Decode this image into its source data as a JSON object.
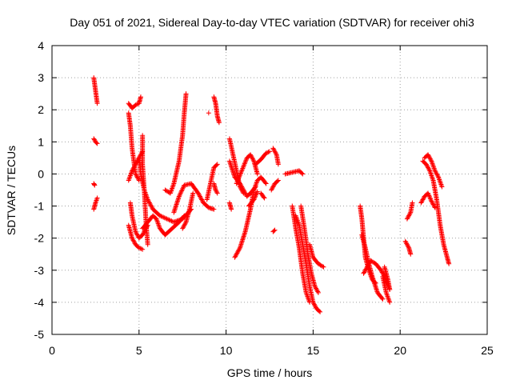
{
  "chart_data": {
    "type": "scatter",
    "title": "Day 051 of 2021, Sidereal Day-to-day VTEC variation (SDTVAR) for receiver ohi3",
    "xlabel": "GPS time / hours",
    "ylabel": "SDTVAR / TECUs",
    "xlim": [
      0,
      25
    ],
    "ylim": [
      -5,
      4
    ],
    "xticks": [
      "0",
      "5",
      "10",
      "15",
      "20",
      "25"
    ],
    "yticks": [
      "-5",
      "-4",
      "-3",
      "-2",
      "-1",
      "0",
      "1",
      "2",
      "3",
      "4"
    ],
    "grid": true,
    "marker": "+",
    "marker_color": "#ff0000",
    "segments": [
      [
        [
          2.4,
          3.0
        ],
        [
          2.5,
          2.6
        ],
        [
          2.6,
          2.2
        ]
      ],
      [
        [
          2.4,
          1.1
        ],
        [
          2.5,
          1.0
        ],
        [
          2.6,
          0.95
        ]
      ],
      [
        [
          2.4,
          -0.3
        ],
        [
          2.45,
          -0.35
        ]
      ],
      [
        [
          2.4,
          -1.1
        ],
        [
          2.5,
          -0.9
        ],
        [
          2.6,
          -0.75
        ]
      ],
      [
        [
          4.4,
          -1.6
        ],
        [
          4.6,
          -2.0
        ],
        [
          4.8,
          -2.2
        ],
        [
          5.0,
          -2.3
        ],
        [
          5.2,
          -2.35
        ]
      ],
      [
        [
          4.4,
          -0.2
        ],
        [
          4.6,
          0.1
        ],
        [
          4.8,
          0.3
        ],
        [
          5.0,
          0.5
        ],
        [
          5.2,
          0.7
        ]
      ],
      [
        [
          4.4,
          2.2
        ],
        [
          4.6,
          2.05
        ],
        [
          4.8,
          2.15
        ],
        [
          5.0,
          2.2
        ],
        [
          5.1,
          2.4
        ]
      ],
      [
        [
          4.4,
          1.9
        ],
        [
          4.5,
          1.5
        ],
        [
          4.6,
          0.8
        ],
        [
          4.8,
          0.0
        ],
        [
          5.0,
          -0.2
        ]
      ],
      [
        [
          4.5,
          -0.9
        ],
        [
          4.6,
          -1.3
        ],
        [
          4.8,
          -1.8
        ],
        [
          5.0,
          -2.0
        ],
        [
          5.2,
          -1.9
        ],
        [
          5.5,
          -1.6
        ]
      ],
      [
        [
          5.0,
          0.5
        ],
        [
          5.1,
          0.0
        ],
        [
          5.3,
          -0.5
        ],
        [
          5.5,
          -0.8
        ],
        [
          5.8,
          -1.1
        ],
        [
          6.2,
          -1.3
        ],
        [
          6.6,
          -1.4
        ],
        [
          7.0,
          -1.5
        ],
        [
          7.5,
          -1.4
        ],
        [
          8.0,
          -1.1
        ]
      ],
      [
        [
          5.2,
          1.2
        ],
        [
          5.2,
          0.3
        ],
        [
          5.3,
          -0.5
        ],
        [
          5.4,
          -1.5
        ],
        [
          5.5,
          -2.2
        ]
      ],
      [
        [
          5.2,
          -1.7
        ],
        [
          5.5,
          -1.5
        ],
        [
          5.8,
          -1.3
        ],
        [
          6.0,
          -1.4
        ],
        [
          6.2,
          -1.7
        ],
        [
          6.5,
          -1.9
        ],
        [
          6.9,
          -1.7
        ],
        [
          7.3,
          -1.5
        ],
        [
          7.6,
          -1.3
        ]
      ],
      [
        [
          6.5,
          -0.5
        ],
        [
          6.8,
          -0.6
        ],
        [
          7.0,
          -0.3
        ],
        [
          7.3,
          0.4
        ],
        [
          7.5,
          1.2
        ],
        [
          7.6,
          1.9
        ],
        [
          7.7,
          2.5
        ]
      ],
      [
        [
          7.0,
          -1.2
        ],
        [
          7.3,
          -0.7
        ],
        [
          7.6,
          -0.35
        ],
        [
          8.0,
          -0.3
        ],
        [
          8.4,
          -0.6
        ],
        [
          8.7,
          -0.9
        ],
        [
          9.0,
          -1.05
        ],
        [
          9.3,
          -1.1
        ]
      ],
      [
        [
          7.5,
          -1.7
        ],
        [
          7.7,
          -1.5
        ],
        [
          7.9,
          -1.1
        ],
        [
          8.1,
          -0.6
        ]
      ],
      [
        [
          8.9,
          -0.8
        ],
        [
          9.1,
          -0.3
        ],
        [
          9.3,
          0.2
        ],
        [
          9.5,
          0.3
        ]
      ],
      [
        [
          9.0,
          1.9
        ]
      ],
      [
        [
          9.3,
          2.4
        ],
        [
          9.4,
          2.2
        ],
        [
          9.5,
          1.8
        ],
        [
          9.6,
          1.6
        ]
      ],
      [
        [
          9.3,
          -0.3
        ],
        [
          9.4,
          -0.5
        ],
        [
          9.5,
          -0.6
        ]
      ],
      [
        [
          10.2,
          1.1
        ],
        [
          10.4,
          0.6
        ],
        [
          10.6,
          0.1
        ],
        [
          10.8,
          -0.4
        ],
        [
          11.0,
          -0.6
        ]
      ],
      [
        [
          10.2,
          -0.9
        ],
        [
          10.3,
          -1.1
        ]
      ],
      [
        [
          10.2,
          0.4
        ],
        [
          10.5,
          -0.1
        ],
        [
          10.8,
          -0.3
        ],
        [
          11.0,
          -0.5
        ],
        [
          11.2,
          -0.7
        ],
        [
          11.4,
          -0.6
        ],
        [
          11.7,
          -0.4
        ]
      ],
      [
        [
          10.5,
          -2.6
        ],
        [
          10.8,
          -2.3
        ],
        [
          11.1,
          -1.8
        ],
        [
          11.4,
          -1.1
        ],
        [
          11.6,
          -0.5
        ],
        [
          11.8,
          -0.2
        ],
        [
          12.0,
          -0.1
        ],
        [
          12.3,
          -0.3
        ]
      ],
      [
        [
          10.6,
          -0.3
        ],
        [
          10.9,
          0.1
        ],
        [
          11.2,
          0.5
        ],
        [
          11.4,
          0.6
        ],
        [
          11.6,
          0.4
        ],
        [
          11.8,
          0.0
        ]
      ],
      [
        [
          11.3,
          -1.0
        ],
        [
          11.6,
          -0.8
        ],
        [
          11.8,
          -0.55
        ]
      ],
      [
        [
          11.7,
          0.3
        ],
        [
          12.0,
          0.45
        ],
        [
          12.3,
          0.65
        ],
        [
          12.5,
          0.7
        ]
      ],
      [
        [
          12.0,
          -0.6
        ],
        [
          12.2,
          -0.75
        ]
      ],
      [
        [
          12.6,
          -0.5
        ],
        [
          12.8,
          -0.3
        ],
        [
          13.0,
          -0.2
        ]
      ],
      [
        [
          12.7,
          0.8
        ],
        [
          12.9,
          0.6
        ],
        [
          13.0,
          0.3
        ]
      ],
      [
        [
          12.7,
          -1.8
        ],
        [
          12.8,
          -1.75
        ]
      ],
      [
        [
          13.4,
          0.0
        ],
        [
          13.8,
          0.05
        ],
        [
          14.2,
          0.1
        ],
        [
          14.4,
          0.0
        ]
      ],
      [
        [
          13.8,
          -1.0
        ],
        [
          14.0,
          -1.7
        ],
        [
          14.2,
          -2.3
        ],
        [
          14.4,
          -3.1
        ],
        [
          14.6,
          -3.7
        ],
        [
          14.8,
          -4.0
        ]
      ],
      [
        [
          14.0,
          -1.3
        ],
        [
          14.2,
          -1.6
        ],
        [
          14.4,
          -2.2
        ],
        [
          14.6,
          -2.8
        ],
        [
          14.8,
          -3.5
        ],
        [
          15.0,
          -4.0
        ],
        [
          15.2,
          -4.2
        ],
        [
          15.4,
          -4.3
        ]
      ],
      [
        [
          14.3,
          -1.0
        ],
        [
          14.5,
          -1.7
        ],
        [
          14.7,
          -2.5
        ],
        [
          14.9,
          -3.1
        ],
        [
          15.1,
          -3.5
        ],
        [
          15.3,
          -3.7
        ]
      ],
      [
        [
          14.8,
          -2.2
        ],
        [
          15.0,
          -2.6
        ],
        [
          15.3,
          -2.8
        ],
        [
          15.6,
          -2.9
        ]
      ],
      [
        [
          17.7,
          -1.0
        ],
        [
          17.8,
          -1.4
        ],
        [
          17.9,
          -2.0
        ],
        [
          18.0,
          -2.6
        ],
        [
          18.2,
          -3.0
        ],
        [
          18.4,
          -3.3
        ],
        [
          18.6,
          -3.4
        ]
      ],
      [
        [
          17.8,
          -1.9
        ],
        [
          18.0,
          -2.3
        ],
        [
          18.2,
          -2.8
        ],
        [
          18.4,
          -3.2
        ],
        [
          18.7,
          -3.7
        ],
        [
          19.0,
          -3.9
        ]
      ],
      [
        [
          17.9,
          -3.1
        ],
        [
          18.1,
          -2.9
        ],
        [
          18.3,
          -2.7
        ],
        [
          18.6,
          -2.8
        ],
        [
          18.9,
          -3.0
        ],
        [
          19.2,
          -3.3
        ],
        [
          19.4,
          -3.6
        ]
      ],
      [
        [
          19.0,
          -3.2
        ],
        [
          19.2,
          -3.7
        ],
        [
          19.4,
          -4.0
        ]
      ],
      [
        [
          19.1,
          -2.9
        ],
        [
          19.3,
          -3.3
        ],
        [
          19.4,
          -3.6
        ]
      ],
      [
        [
          20.3,
          -2.1
        ],
        [
          20.5,
          -2.3
        ],
        [
          20.6,
          -2.5
        ]
      ],
      [
        [
          20.4,
          -1.4
        ],
        [
          20.6,
          -1.2
        ],
        [
          20.7,
          -0.9
        ]
      ],
      [
        [
          21.2,
          -0.9
        ],
        [
          21.4,
          -0.7
        ],
        [
          21.6,
          -0.6
        ],
        [
          21.8,
          -0.85
        ],
        [
          22.0,
          -1.05
        ]
      ],
      [
        [
          21.3,
          0.4
        ],
        [
          21.5,
          0.3
        ],
        [
          21.7,
          0.1
        ],
        [
          21.9,
          -0.2
        ],
        [
          22.1,
          -0.8
        ],
        [
          22.3,
          -1.6
        ],
        [
          22.5,
          -2.2
        ],
        [
          22.7,
          -2.6
        ],
        [
          22.8,
          -2.8
        ]
      ],
      [
        [
          21.4,
          0.5
        ],
        [
          21.6,
          0.6
        ],
        [
          21.8,
          0.4
        ],
        [
          22.0,
          0.1
        ],
        [
          22.2,
          -0.1
        ],
        [
          22.4,
          -0.4
        ]
      ]
    ]
  }
}
